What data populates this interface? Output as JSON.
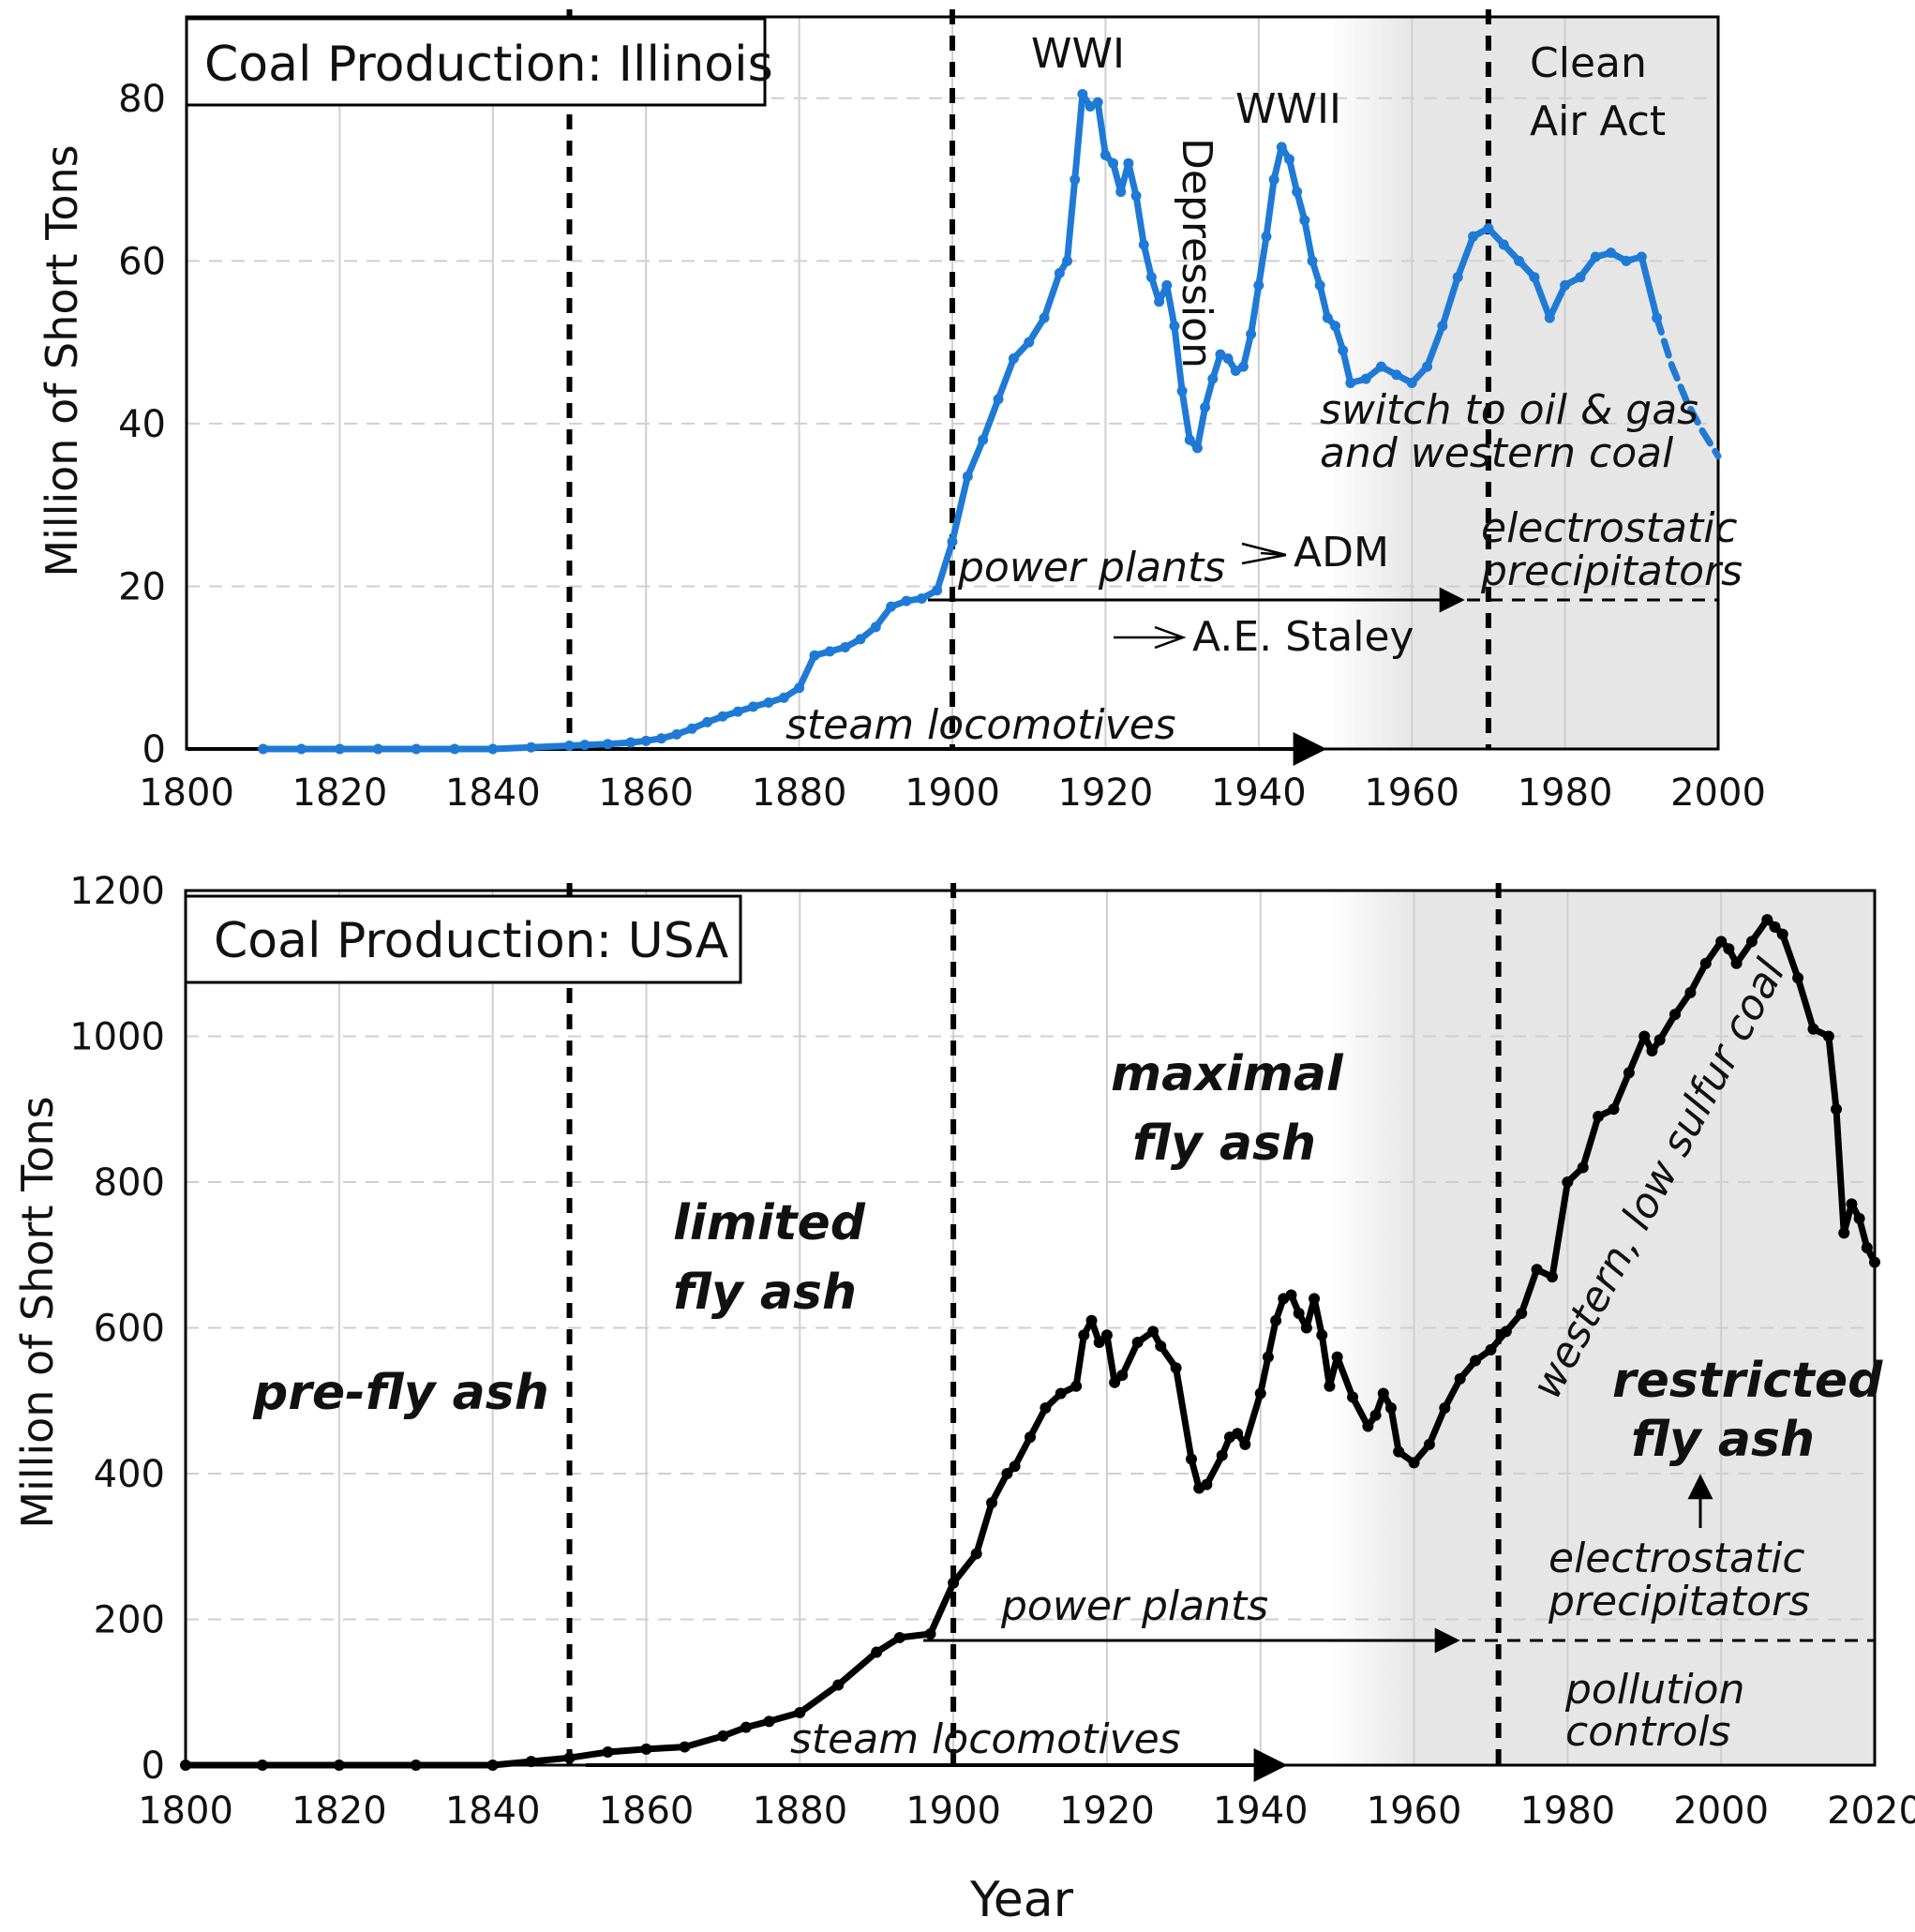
{
  "figure": {
    "xlabel": "Year",
    "colors": {
      "illinois_line": "#1f7ad6",
      "usa_line": "#000000",
      "shade": "#e8e8e8",
      "grid": "#cfcfcf"
    }
  },
  "chart_data": [
    {
      "type": "line",
      "title": "Coal Production: Illinois",
      "xlabel": "",
      "ylabel": "Million of Short Tons",
      "xlim": [
        1800,
        2000
      ],
      "ylim": [
        0,
        90
      ],
      "xticks": [
        1800,
        1820,
        1840,
        1860,
        1880,
        1900,
        1920,
        1940,
        1960,
        1980,
        2000
      ],
      "yticks": [
        0,
        20,
        40,
        60,
        80
      ],
      "shaded_from": 1960,
      "vlines": [
        1850,
        1900,
        1970
      ],
      "series": [
        {
          "name": "Illinois",
          "x": [
            1810,
            1815,
            1820,
            1825,
            1830,
            1835,
            1840,
            1845,
            1850,
            1852,
            1855,
            1858,
            1860,
            1862,
            1864,
            1866,
            1868,
            1870,
            1872,
            1874,
            1876,
            1878,
            1880,
            1882,
            1884,
            1886,
            1888,
            1890,
            1892,
            1894,
            1896,
            1898,
            1900,
            1902,
            1904,
            1906,
            1908,
            1910,
            1912,
            1914,
            1915,
            1916,
            1917,
            1918,
            1919,
            1920,
            1921,
            1922,
            1923,
            1924,
            1925,
            1926,
            1927,
            1928,
            1929,
            1930,
            1931,
            1932,
            1933,
            1934,
            1935,
            1936,
            1937,
            1938,
            1939,
            1940,
            1941,
            1942,
            1943,
            1944,
            1945,
            1946,
            1947,
            1948,
            1949,
            1950,
            1951,
            1952,
            1954,
            1956,
            1958,
            1960,
            1962,
            1964,
            1966,
            1968,
            1970,
            1972,
            1974,
            1976,
            1978,
            1980,
            1982,
            1984,
            1986,
            1988,
            1990,
            1992
          ],
          "y": [
            0,
            0,
            0,
            0,
            0,
            0,
            0,
            0.2,
            0.4,
            0.5,
            0.6,
            0.8,
            1.0,
            1.3,
            1.8,
            2.5,
            3.3,
            4.0,
            4.6,
            5.2,
            5.7,
            6.3,
            7.5,
            11.5,
            12.0,
            12.5,
            13.5,
            15.0,
            17.5,
            18.2,
            18.5,
            19.5,
            25.5,
            33.5,
            38.0,
            43.0,
            48.0,
            50.0,
            53.0,
            58.5,
            60.0,
            70.0,
            80.5,
            79.0,
            79.5,
            73.0,
            72.0,
            68.5,
            72.0,
            68.0,
            62.0,
            58.0,
            55.0,
            57.0,
            52.0,
            44.0,
            38.0,
            37.0,
            42.0,
            45.5,
            48.5,
            48.0,
            46.5,
            47.0,
            51.0,
            57.0,
            63.0,
            70.0,
            74.0,
            72.5,
            68.5,
            65.0,
            60.0,
            57.0,
            53.0,
            52.0,
            49.0,
            45.0,
            45.5,
            47.0,
            46.0,
            45.0,
            47.0,
            52.0,
            58.0,
            63.0,
            64.0,
            62.0,
            60.0,
            58.0,
            53.0,
            57.0,
            58.0,
            60.5,
            61.0,
            60.0,
            60.5,
            53.0
          ]
        },
        {
          "name": "Illinois (projected)",
          "x": [
            1992,
            1994,
            1996,
            1998,
            2000
          ],
          "y": [
            53.0,
            47.0,
            42.5,
            39.0,
            36.0
          ]
        }
      ],
      "annotations": {
        "wwi": "WWI",
        "wwii": "WWII",
        "depression": "Depression",
        "clean_air_line1": "Clean",
        "clean_air_line2": "Air Act",
        "switch_line1": "switch to oil & gas",
        "switch_line2": "and western coal",
        "power_plants": "power plants",
        "adm": "ADM",
        "staley": "A.E. Staley",
        "esp_line1": "electrostatic",
        "esp_line2": "precipitators",
        "steam": "steam  locomotives"
      }
    },
    {
      "type": "line",
      "title": "Coal Production: USA",
      "xlabel": "Year",
      "ylabel": "Million of Short Tons",
      "xlim": [
        1800,
        2020
      ],
      "ylim": [
        0,
        1200
      ],
      "xticks": [
        1800,
        1820,
        1840,
        1860,
        1880,
        1900,
        1920,
        1940,
        1960,
        1980,
        2000,
        2020
      ],
      "yticks": [
        0,
        200,
        400,
        600,
        800,
        1000,
        1200
      ],
      "shaded_from": 1960,
      "vlines": [
        1850,
        1900,
        1971
      ],
      "series": [
        {
          "name": "USA",
          "x": [
            1800,
            1810,
            1820,
            1830,
            1840,
            1845,
            1850,
            1855,
            1860,
            1865,
            1870,
            1873,
            1876,
            1880,
            1885,
            1890,
            1893,
            1897,
            1900,
            1903,
            1905,
            1907,
            1908,
            1910,
            1912,
            1914,
            1916,
            1917,
            1918,
            1919,
            1920,
            1921,
            1922,
            1924,
            1926,
            1927,
            1929,
            1931,
            1932,
            1933,
            1935,
            1936,
            1937,
            1938,
            1940,
            1941,
            1942,
            1943,
            1944,
            1945,
            1946,
            1947,
            1948,
            1949,
            1950,
            1952,
            1954,
            1955,
            1956,
            1957,
            1958,
            1960,
            1962,
            1964,
            1966,
            1968,
            1970,
            1972,
            1974,
            1976,
            1978,
            1980,
            1982,
            1984,
            1986,
            1988,
            1990,
            1991,
            1992,
            1994,
            1996,
            1998,
            2000,
            2001,
            2002,
            2004,
            2006,
            2007,
            2008,
            2010,
            2012,
            2014,
            2015,
            2016,
            2017,
            2018,
            2019,
            2020
          ],
          "y": [
            0,
            0,
            0,
            0,
            0,
            5,
            10,
            18,
            22,
            25,
            40,
            52,
            60,
            72,
            110,
            155,
            175,
            180,
            250,
            290,
            360,
            400,
            410,
            450,
            490,
            510,
            520,
            590,
            610,
            580,
            590,
            525,
            535,
            580,
            595,
            575,
            545,
            420,
            380,
            385,
            425,
            450,
            455,
            440,
            510,
            560,
            610,
            640,
            645,
            620,
            600,
            640,
            590,
            520,
            560,
            505,
            465,
            480,
            510,
            490,
            430,
            415,
            440,
            490,
            530,
            555,
            570,
            595,
            620,
            680,
            670,
            800,
            820,
            890,
            900,
            950,
            1000,
            980,
            995,
            1030,
            1060,
            1100,
            1130,
            1120,
            1100,
            1130,
            1160,
            1150,
            1140,
            1080,
            1010,
            1000,
            900,
            730,
            770,
            750,
            710,
            690
          ]
        }
      ],
      "annotations": {
        "pre_fly_ash": "pre-fly ash",
        "limited_line1": "limited",
        "limited_line2": "fly ash",
        "maximal_line1": "maximal",
        "maximal_line2": "fly ash",
        "western": "western, low sulfur coal",
        "restricted_line1": "restricted",
        "restricted_line2": "fly ash",
        "esp_line1": "electrostatic",
        "esp_line2": "precipitators",
        "power_plants": "power plants",
        "pollution_line1": "pollution",
        "pollution_line2": "controls",
        "steam": "steam  locomotives"
      }
    }
  ]
}
